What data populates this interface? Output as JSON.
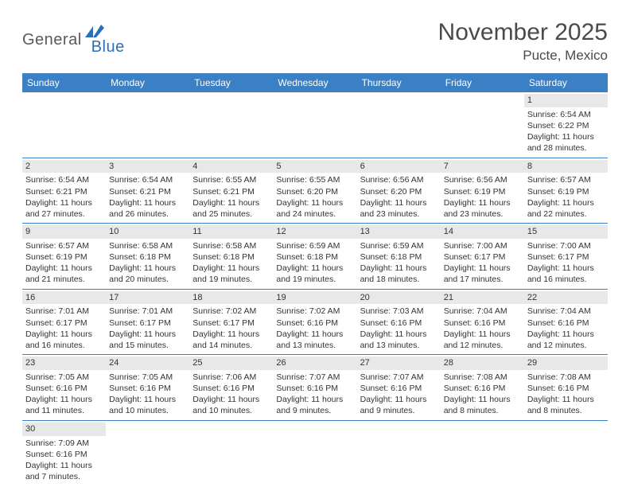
{
  "logo": {
    "general": "General",
    "blue": "Blue"
  },
  "title": "November 2025",
  "location": "Pucte, Mexico",
  "colors": {
    "header_bg": "#3b7fc4",
    "header_text": "#ffffff",
    "daynum_bg": "#e8e8e8",
    "rule": "#3b7fc4",
    "text": "#333333",
    "logo_gray": "#5a5a5a",
    "logo_blue": "#2d6fb5"
  },
  "weekdays": [
    "Sunday",
    "Monday",
    "Tuesday",
    "Wednesday",
    "Thursday",
    "Friday",
    "Saturday"
  ],
  "labels": {
    "sunrise": "Sunrise:",
    "sunset": "Sunset:",
    "daylight_prefix": "Daylight:",
    "hours_word": "hours",
    "and_word": "and",
    "minutes_word": "minutes."
  },
  "weeks": [
    [
      {
        "n": "",
        "empty": true
      },
      {
        "n": "",
        "empty": true
      },
      {
        "n": "",
        "empty": true
      },
      {
        "n": "",
        "empty": true
      },
      {
        "n": "",
        "empty": true
      },
      {
        "n": "",
        "empty": true
      },
      {
        "n": "1",
        "sr": "6:54 AM",
        "ss": "6:22 PM",
        "dh": "11",
        "dm": "28"
      }
    ],
    [
      {
        "n": "2",
        "sr": "6:54 AM",
        "ss": "6:21 PM",
        "dh": "11",
        "dm": "27"
      },
      {
        "n": "3",
        "sr": "6:54 AM",
        "ss": "6:21 PM",
        "dh": "11",
        "dm": "26"
      },
      {
        "n": "4",
        "sr": "6:55 AM",
        "ss": "6:21 PM",
        "dh": "11",
        "dm": "25"
      },
      {
        "n": "5",
        "sr": "6:55 AM",
        "ss": "6:20 PM",
        "dh": "11",
        "dm": "24"
      },
      {
        "n": "6",
        "sr": "6:56 AM",
        "ss": "6:20 PM",
        "dh": "11",
        "dm": "23"
      },
      {
        "n": "7",
        "sr": "6:56 AM",
        "ss": "6:19 PM",
        "dh": "11",
        "dm": "23"
      },
      {
        "n": "8",
        "sr": "6:57 AM",
        "ss": "6:19 PM",
        "dh": "11",
        "dm": "22"
      }
    ],
    [
      {
        "n": "9",
        "sr": "6:57 AM",
        "ss": "6:19 PM",
        "dh": "11",
        "dm": "21"
      },
      {
        "n": "10",
        "sr": "6:58 AM",
        "ss": "6:18 PM",
        "dh": "11",
        "dm": "20"
      },
      {
        "n": "11",
        "sr": "6:58 AM",
        "ss": "6:18 PM",
        "dh": "11",
        "dm": "19"
      },
      {
        "n": "12",
        "sr": "6:59 AM",
        "ss": "6:18 PM",
        "dh": "11",
        "dm": "19"
      },
      {
        "n": "13",
        "sr": "6:59 AM",
        "ss": "6:18 PM",
        "dh": "11",
        "dm": "18"
      },
      {
        "n": "14",
        "sr": "7:00 AM",
        "ss": "6:17 PM",
        "dh": "11",
        "dm": "17"
      },
      {
        "n": "15",
        "sr": "7:00 AM",
        "ss": "6:17 PM",
        "dh": "11",
        "dm": "16"
      }
    ],
    [
      {
        "n": "16",
        "sr": "7:01 AM",
        "ss": "6:17 PM",
        "dh": "11",
        "dm": "16"
      },
      {
        "n": "17",
        "sr": "7:01 AM",
        "ss": "6:17 PM",
        "dh": "11",
        "dm": "15"
      },
      {
        "n": "18",
        "sr": "7:02 AM",
        "ss": "6:17 PM",
        "dh": "11",
        "dm": "14"
      },
      {
        "n": "19",
        "sr": "7:02 AM",
        "ss": "6:16 PM",
        "dh": "11",
        "dm": "13"
      },
      {
        "n": "20",
        "sr": "7:03 AM",
        "ss": "6:16 PM",
        "dh": "11",
        "dm": "13"
      },
      {
        "n": "21",
        "sr": "7:04 AM",
        "ss": "6:16 PM",
        "dh": "11",
        "dm": "12"
      },
      {
        "n": "22",
        "sr": "7:04 AM",
        "ss": "6:16 PM",
        "dh": "11",
        "dm": "12"
      }
    ],
    [
      {
        "n": "23",
        "sr": "7:05 AM",
        "ss": "6:16 PM",
        "dh": "11",
        "dm": "11"
      },
      {
        "n": "24",
        "sr": "7:05 AM",
        "ss": "6:16 PM",
        "dh": "11",
        "dm": "10"
      },
      {
        "n": "25",
        "sr": "7:06 AM",
        "ss": "6:16 PM",
        "dh": "11",
        "dm": "10"
      },
      {
        "n": "26",
        "sr": "7:07 AM",
        "ss": "6:16 PM",
        "dh": "11",
        "dm": "9"
      },
      {
        "n": "27",
        "sr": "7:07 AM",
        "ss": "6:16 PM",
        "dh": "11",
        "dm": "9"
      },
      {
        "n": "28",
        "sr": "7:08 AM",
        "ss": "6:16 PM",
        "dh": "11",
        "dm": "8"
      },
      {
        "n": "29",
        "sr": "7:08 AM",
        "ss": "6:16 PM",
        "dh": "11",
        "dm": "8"
      }
    ],
    [
      {
        "n": "30",
        "sr": "7:09 AM",
        "ss": "6:16 PM",
        "dh": "11",
        "dm": "7"
      },
      {
        "n": "",
        "empty": true
      },
      {
        "n": "",
        "empty": true
      },
      {
        "n": "",
        "empty": true
      },
      {
        "n": "",
        "empty": true
      },
      {
        "n": "",
        "empty": true
      },
      {
        "n": "",
        "empty": true
      }
    ]
  ]
}
